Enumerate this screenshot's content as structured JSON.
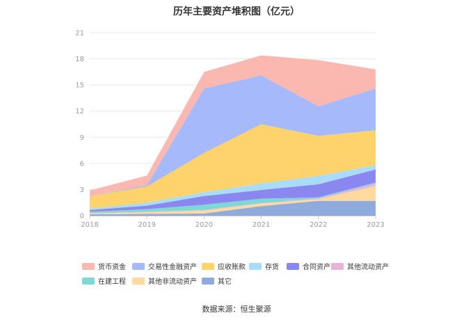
{
  "chart_data": {
    "type": "area",
    "stacked": true,
    "title": "历年主要资产堆积图（亿元）",
    "source": "数据来源：恒生聚源",
    "x": [
      "2018",
      "2019",
      "2020",
      "2021",
      "2022",
      "2023"
    ],
    "yticks": [
      "0",
      "3",
      "6",
      "9",
      "12",
      "15",
      "18",
      "21"
    ],
    "ylim": [
      0,
      21
    ],
    "legend_position": "bottom",
    "grid": true,
    "series": [
      {
        "name": "其它",
        "color": "#8faadc",
        "values": [
          0.15,
          0.2,
          0.25,
          1.1,
          1.7,
          1.7
        ]
      },
      {
        "name": "其他非流动资产",
        "color": "#ffd99e",
        "values": [
          0.1,
          0.2,
          0.35,
          0.3,
          0.2,
          1.7
        ]
      },
      {
        "name": "其他流动资产",
        "color": "#e8b4d8",
        "values": [
          0.05,
          0.05,
          0.05,
          0.05,
          0.1,
          0.3
        ]
      },
      {
        "name": "在建工程",
        "color": "#7dd8d6",
        "values": [
          0.15,
          0.3,
          0.6,
          0.5,
          0.1,
          0.1
        ]
      },
      {
        "name": "合同资产",
        "color": "#8b87f0",
        "values": [
          0.2,
          0.4,
          1.0,
          1.0,
          1.5,
          1.5
        ]
      },
      {
        "name": "存货",
        "color": "#a8dcf8",
        "values": [
          0.15,
          0.35,
          0.45,
          0.75,
          0.95,
          0.5
        ]
      },
      {
        "name": "应收账款",
        "color": "#ffd36b",
        "values": [
          1.4,
          1.85,
          4.5,
          6.8,
          4.6,
          4.0
        ]
      },
      {
        "name": "交易性金融资产",
        "color": "#a6b9fb",
        "values": [
          0.0,
          0.15,
          7.4,
          5.6,
          3.4,
          4.8
        ]
      },
      {
        "name": "货币资金",
        "color": "#fbb8b1",
        "values": [
          0.7,
          1.1,
          1.9,
          2.3,
          5.3,
          2.2
        ]
      }
    ],
    "legend_order": [
      "货币资金",
      "交易性金融资产",
      "应收账款",
      "存货",
      "合同资产",
      "其他流动资产",
      "在建工程",
      "其他非流动资产",
      "其它"
    ]
  }
}
